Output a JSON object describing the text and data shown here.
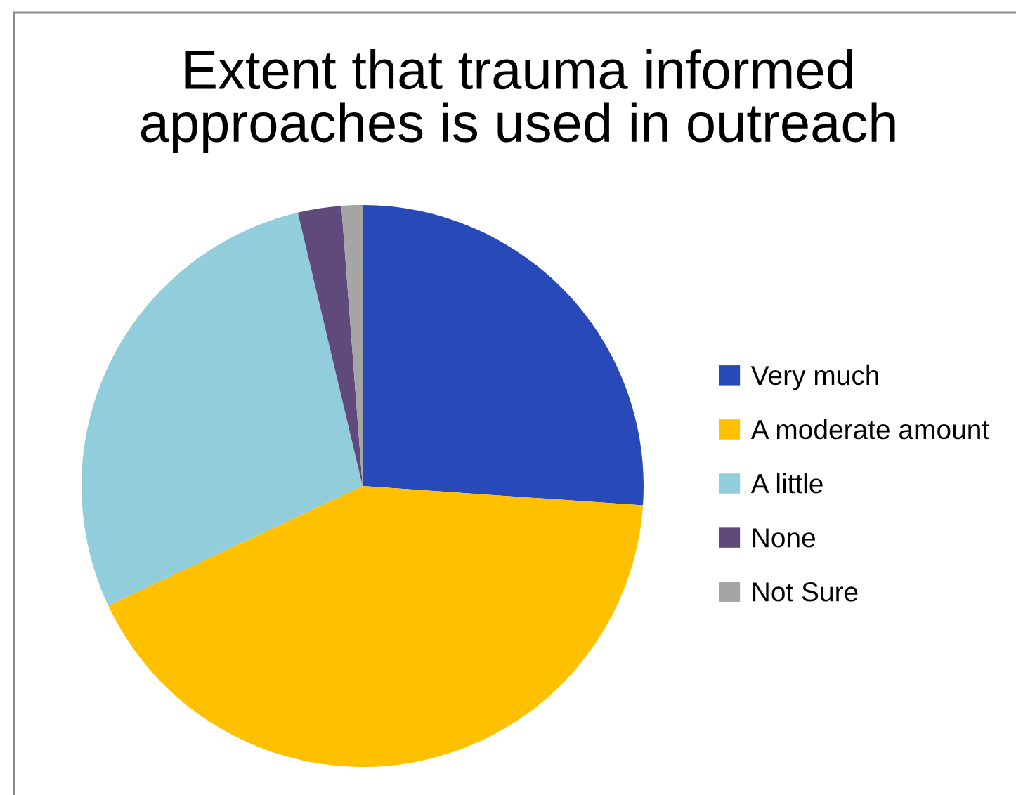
{
  "chart_data": {
    "type": "pie",
    "title": "Extent that trauma informed\napproaches is used in outreach",
    "categories": [
      "Very much",
      "A moderate amount",
      "A little",
      "None",
      "Not Sure"
    ],
    "values": [
      26.1,
      41.9,
      28.3,
      2.5,
      1.2
    ],
    "colors": [
      "#2849b8",
      "#ffc000",
      "#92cddc",
      "#604a7b",
      "#a5a5a5"
    ],
    "legend": "right"
  }
}
